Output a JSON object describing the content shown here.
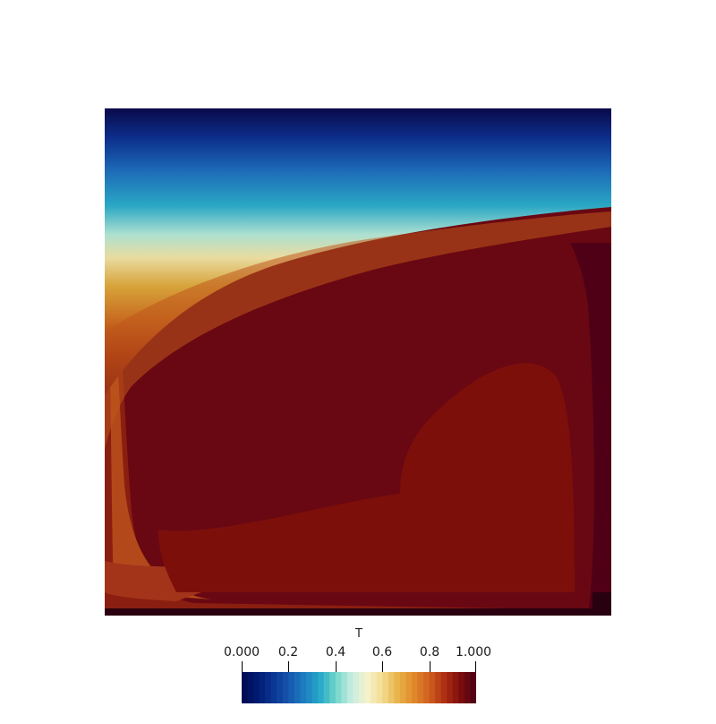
{
  "colorbar": {
    "title": "T",
    "ticks": [
      {
        "value": 0.0,
        "label": "0.000"
      },
      {
        "value": 0.2,
        "label": "0.2"
      },
      {
        "value": 0.4,
        "label": "0.4"
      },
      {
        "value": 0.6,
        "label": "0.6"
      },
      {
        "value": 0.8,
        "label": "0.8"
      },
      {
        "value": 1.0,
        "label": "1.000"
      }
    ],
    "range": [
      0,
      1
    ],
    "bands": 40,
    "colors": [
      "#000a50",
      "#001a72",
      "#0a3592",
      "#1655ad",
      "#1d7ec1",
      "#25a8c8",
      "#6fd4c8",
      "#c4ece1",
      "#f5f3ce",
      "#f3dc90",
      "#e7b247",
      "#e18a2c",
      "#cf5f1f",
      "#ad2d11",
      "#7c0d0d",
      "#4a0014"
    ]
  },
  "field": {
    "variable": "T",
    "domain": "square",
    "cold_wall": "top",
    "hot_interior_value": 0.92
  }
}
